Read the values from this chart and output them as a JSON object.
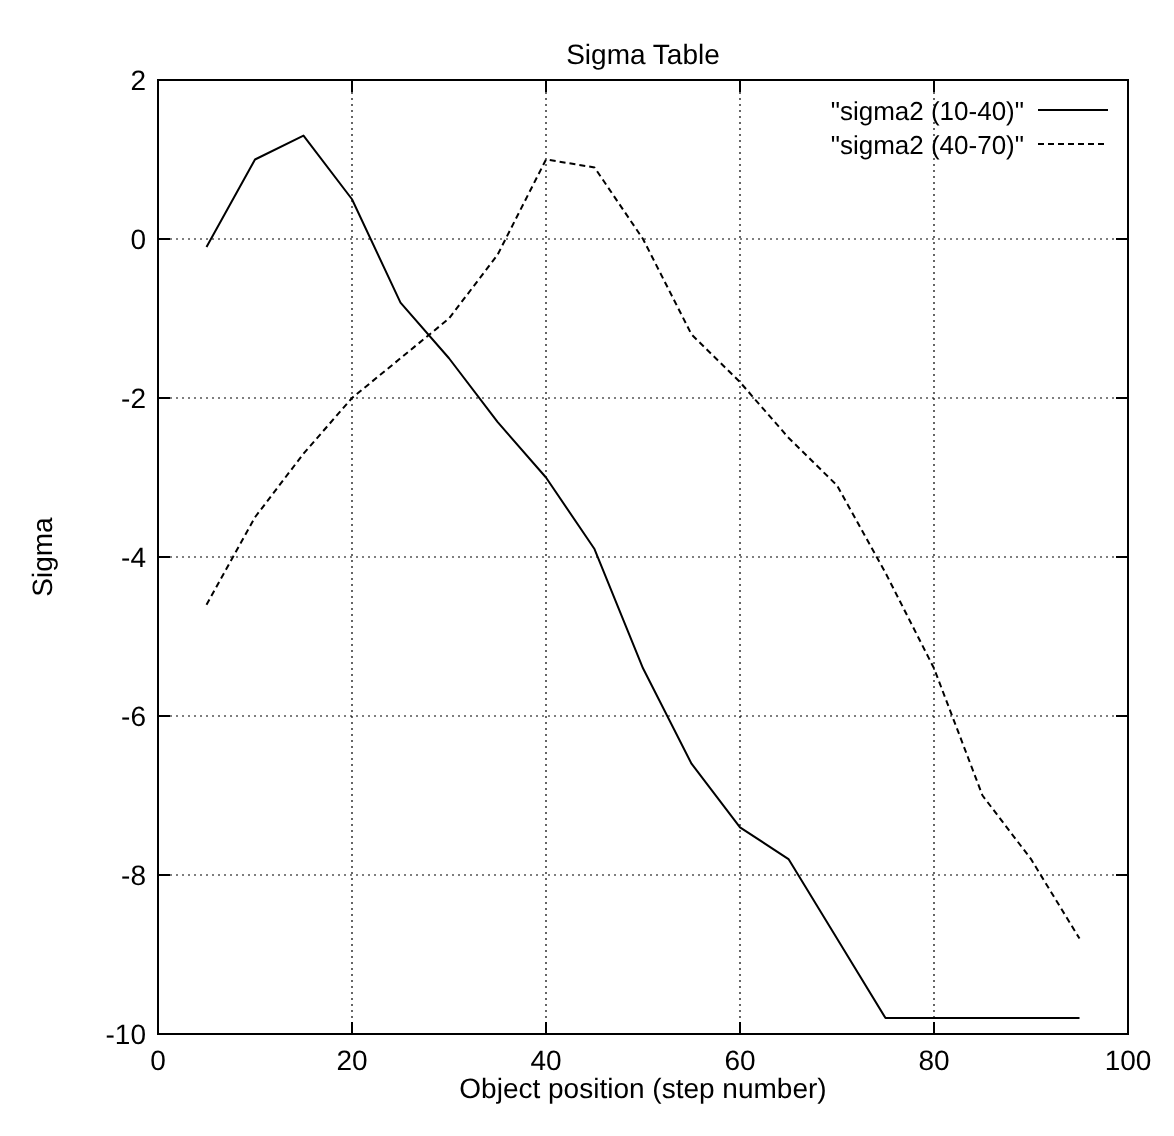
{
  "chart_data": {
    "type": "line",
    "title": "Sigma Table",
    "xlabel": "Object position (step number)",
    "ylabel": "Sigma",
    "x": [
      5,
      10,
      15,
      20,
      25,
      30,
      35,
      40,
      45,
      50,
      55,
      60,
      65,
      70,
      75,
      80,
      85,
      90,
      95
    ],
    "series": [
      {
        "name": "\"sigma2 (10-40)\"",
        "color": "#000000",
        "line_style": "solid",
        "values": [
          -0.1,
          1.0,
          1.3,
          0.5,
          -0.8,
          -1.5,
          -2.3,
          -3.0,
          -3.9,
          -5.4,
          -6.6,
          -7.4,
          -7.8,
          -8.8,
          -9.8,
          -9.8,
          -9.8,
          -9.8,
          -9.8
        ]
      },
      {
        "name": "\"sigma2 (40-70)\"",
        "color": "#000000",
        "line_style": "dashed",
        "values": [
          -4.6,
          -3.5,
          -2.7,
          -2.0,
          -1.5,
          -1.0,
          -0.2,
          1.0,
          0.9,
          0.0,
          -1.2,
          -1.8,
          -2.5,
          -3.1,
          -4.2,
          -5.4,
          -7.0,
          -7.8,
          -8.8
        ]
      }
    ],
    "xlim": [
      0,
      100
    ],
    "xticks": [
      0,
      20,
      40,
      60,
      80,
      100
    ],
    "ylim": [
      -10,
      2
    ],
    "yticks": [
      -10,
      -8,
      -6,
      -4,
      -2,
      0,
      2
    ],
    "grid": true,
    "legend": "top right"
  }
}
